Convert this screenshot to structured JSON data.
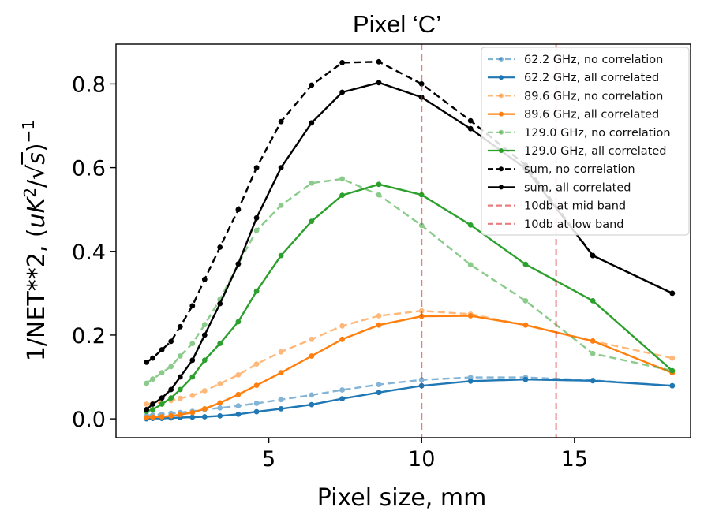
{
  "chart_data": {
    "type": "line",
    "title": "Pixel ‘C’",
    "xlabel": "Pixel size, mm",
    "ylabel": "1/NET**2, (uK²/√s)⁻¹",
    "ylabel_parts": {
      "prefix": "1/NET**2, (",
      "var1": "uK",
      "exp": "2",
      "slash": "/",
      "sqrt_arg": "s",
      "suffix_exp": "−1"
    },
    "xlim": [
      0.0,
      18.8
    ],
    "ylim": [
      -0.045,
      0.895
    ],
    "xticks": [
      5,
      10,
      15
    ],
    "yticks": [
      0.0,
      0.2,
      0.4,
      0.6,
      0.8
    ],
    "xtick_labels": [
      "5",
      "10",
      "15"
    ],
    "ytick_labels": [
      "0.0",
      "0.2",
      "0.4",
      "0.6",
      "0.8"
    ],
    "grid": false,
    "legend_position": "top-right",
    "series": [
      {
        "name": "62.2 GHz, no correlation",
        "color": "#1f77b4",
        "style": "dashed",
        "alpha": 0.55,
        "x": [
          1.0,
          1.2,
          1.5,
          1.8,
          2.1,
          2.5,
          2.9,
          3.4,
          4.0,
          4.6,
          5.4,
          6.4,
          7.4,
          8.6,
          10.0,
          11.6,
          13.4,
          15.6,
          18.2
        ],
        "y": [
          0.008,
          0.009,
          0.011,
          0.013,
          0.015,
          0.018,
          0.022,
          0.026,
          0.031,
          0.037,
          0.046,
          0.057,
          0.069,
          0.082,
          0.093,
          0.099,
          0.099,
          0.092,
          0.079
        ]
      },
      {
        "name": "62.2 GHz, all correlated",
        "color": "#1f77b4",
        "style": "solid",
        "alpha": 1.0,
        "x": [
          1.0,
          1.2,
          1.5,
          1.8,
          2.1,
          2.5,
          2.9,
          3.4,
          4.0,
          4.6,
          5.4,
          6.4,
          7.4,
          8.6,
          10.0,
          11.6,
          13.4,
          15.6,
          18.2
        ],
        "y": [
          0.0,
          0.001,
          0.001,
          0.002,
          0.003,
          0.004,
          0.005,
          0.007,
          0.011,
          0.017,
          0.024,
          0.034,
          0.048,
          0.063,
          0.079,
          0.09,
          0.094,
          0.091,
          0.079
        ]
      },
      {
        "name": "89.6 GHz, no correlation",
        "color": "#ff7f0e",
        "style": "dashed",
        "alpha": 0.55,
        "x": [
          1.0,
          1.2,
          1.5,
          1.8,
          2.1,
          2.5,
          2.9,
          3.4,
          4.0,
          4.6,
          5.4,
          6.4,
          7.4,
          8.6,
          10.0,
          11.6,
          13.4,
          15.6,
          18.2
        ],
        "y": [
          0.035,
          0.037,
          0.04,
          0.044,
          0.049,
          0.056,
          0.067,
          0.084,
          0.105,
          0.131,
          0.16,
          0.19,
          0.222,
          0.246,
          0.258,
          0.25,
          0.224,
          0.186,
          0.145
        ]
      },
      {
        "name": "89.6 GHz, all correlated",
        "color": "#ff7f0e",
        "style": "solid",
        "alpha": 1.0,
        "x": [
          1.0,
          1.2,
          1.5,
          1.8,
          2.1,
          2.5,
          2.9,
          3.4,
          4.0,
          4.6,
          5.4,
          6.4,
          7.4,
          8.6,
          10.0,
          11.6,
          13.4,
          15.6,
          18.2
        ],
        "y": [
          0.003,
          0.004,
          0.005,
          0.007,
          0.01,
          0.015,
          0.024,
          0.038,
          0.058,
          0.08,
          0.11,
          0.15,
          0.19,
          0.224,
          0.245,
          0.246,
          0.224,
          0.186,
          0.11
        ]
      },
      {
        "name": "129.0 GHz, no correlation",
        "color": "#2ca02c",
        "style": "dashed",
        "alpha": 0.55,
        "x": [
          1.0,
          1.2,
          1.5,
          1.8,
          2.1,
          2.5,
          2.9,
          3.4,
          4.0,
          4.6,
          5.4,
          6.4,
          7.4,
          8.6,
          10.0,
          11.6,
          13.4,
          15.6,
          18.2
        ],
        "y": [
          0.085,
          0.095,
          0.11,
          0.125,
          0.15,
          0.18,
          0.225,
          0.285,
          0.37,
          0.45,
          0.51,
          0.563,
          0.573,
          0.535,
          0.462,
          0.368,
          0.282,
          0.156,
          0.115
        ]
      },
      {
        "name": "129.0 GHz, all correlated",
        "color": "#2ca02c",
        "style": "solid",
        "alpha": 1.0,
        "x": [
          1.0,
          1.2,
          1.5,
          1.8,
          2.1,
          2.5,
          2.9,
          3.4,
          4.0,
          4.6,
          5.4,
          6.4,
          7.4,
          8.6,
          10.0,
          11.6,
          13.4,
          15.6,
          18.2
        ],
        "y": [
          0.018,
          0.022,
          0.035,
          0.05,
          0.07,
          0.1,
          0.14,
          0.18,
          0.232,
          0.305,
          0.39,
          0.472,
          0.534,
          0.56,
          0.535,
          0.463,
          0.369,
          0.282,
          0.115
        ]
      },
      {
        "name": "sum, no correlation",
        "color": "#000000",
        "style": "dashed",
        "alpha": 1.0,
        "x": [
          1.0,
          1.2,
          1.5,
          1.8,
          2.1,
          2.5,
          2.9,
          3.4,
          4.0,
          4.6,
          5.4,
          6.4,
          7.4,
          8.6,
          10.0,
          11.6,
          13.4,
          15.6,
          18.2
        ],
        "y": [
          0.135,
          0.145,
          0.165,
          0.185,
          0.22,
          0.27,
          0.333,
          0.41,
          0.5,
          0.6,
          0.71,
          0.797,
          0.851,
          0.853,
          0.8,
          0.712,
          0.606,
          0.39,
          0.3
        ]
      },
      {
        "name": "sum, all correlated",
        "color": "#000000",
        "style": "solid",
        "alpha": 1.0,
        "x": [
          1.0,
          1.2,
          1.5,
          1.8,
          2.1,
          2.5,
          2.9,
          3.4,
          4.0,
          4.6,
          5.4,
          6.4,
          7.4,
          8.6,
          10.0,
          11.6,
          13.4,
          15.6,
          18.2
        ],
        "y": [
          0.022,
          0.035,
          0.05,
          0.07,
          0.1,
          0.14,
          0.2,
          0.275,
          0.37,
          0.48,
          0.6,
          0.707,
          0.78,
          0.803,
          0.768,
          0.693,
          0.598,
          0.39,
          0.3
        ]
      }
    ],
    "vlines": [
      {
        "name": "10db at mid band",
        "x": 10.0,
        "color": "#d62728",
        "style": "dashed",
        "alpha": 0.6
      },
      {
        "name": "10db at low band",
        "x": 14.4,
        "color": "#d62728",
        "style": "dashed",
        "alpha": 0.6
      }
    ]
  }
}
